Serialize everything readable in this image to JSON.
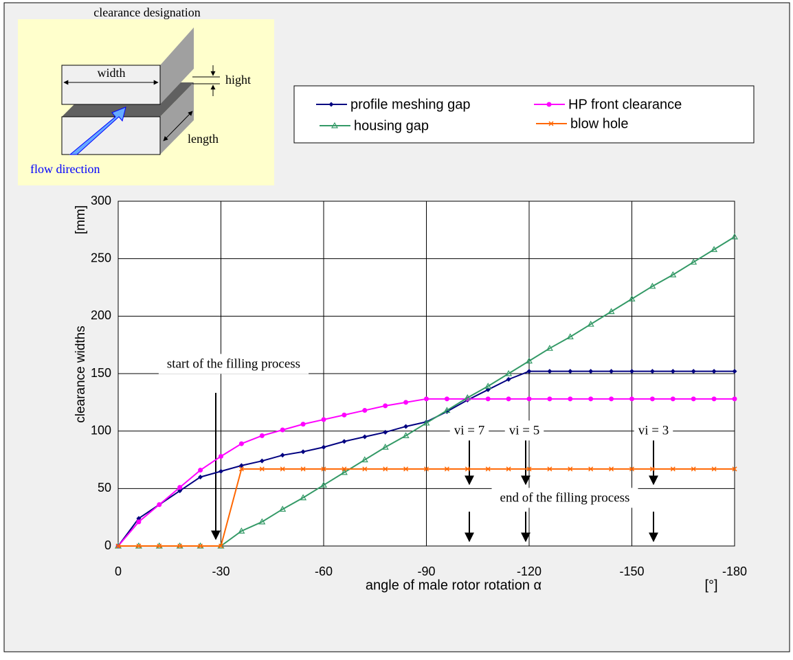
{
  "diagram": {
    "title": "clearance designation",
    "width": "width",
    "hight": "hight",
    "length": "length",
    "flow": "flow direction"
  },
  "chart_data": {
    "type": "line",
    "y_label": "clearance widths",
    "y_unit": "[mm]",
    "x_label": "angle of male rotor rotation  α",
    "x_unit": "[°]",
    "x": [
      0,
      -6,
      -12,
      -18,
      -24,
      -30,
      -36,
      -42,
      -48,
      -54,
      -60,
      -66,
      -72,
      -78,
      -84,
      -90,
      -96,
      -102,
      -108,
      -114,
      -120,
      -126,
      -132,
      -138,
      -144,
      -150,
      -156,
      -162,
      -168,
      -174,
      -180
    ],
    "series": [
      {
        "name": "profile meshing gap",
        "color": "#000080",
        "marker": "diamond",
        "values": [
          0,
          24,
          36,
          48,
          60,
          65,
          70,
          74,
          79,
          82,
          86,
          91,
          95,
          99,
          104,
          108,
          117,
          127,
          136,
          145,
          152,
          152,
          152,
          152,
          152,
          152,
          152,
          152,
          152,
          152,
          152
        ]
      },
      {
        "name": "HP front clearance",
        "color": "#ff00ff",
        "marker": "circle",
        "values": [
          0,
          21,
          36,
          51,
          66,
          78,
          89,
          96,
          101,
          106,
          110,
          114,
          118,
          122,
          125,
          128,
          128,
          128,
          128,
          128,
          128,
          128,
          128,
          128,
          128,
          128,
          128,
          128,
          128,
          128,
          128
        ]
      },
      {
        "name": "housing gap",
        "color": "#339966",
        "marker": "triangle",
        "values": [
          0,
          0,
          0,
          0,
          0,
          0,
          13,
          21,
          32,
          42,
          53,
          64,
          75,
          86,
          96,
          107,
          118,
          129,
          139,
          150,
          161,
          172,
          182,
          193,
          204,
          215,
          226,
          236,
          247,
          258,
          269
        ]
      },
      {
        "name": "blow hole",
        "color": "#ff6600",
        "marker": "x",
        "values": [
          0,
          0,
          0,
          0,
          0,
          0,
          67,
          67,
          67,
          67,
          67,
          67,
          67,
          67,
          67,
          67,
          67,
          67,
          67,
          67,
          67,
          67,
          67,
          67,
          67,
          67,
          67,
          67,
          67,
          67,
          67
        ]
      }
    ],
    "xlim": [
      0,
      -180
    ],
    "xticks": [
      0,
      -30,
      -60,
      -90,
      -120,
      -150,
      -180
    ],
    "ylim": [
      0,
      300
    ],
    "yticks": [
      0,
      50,
      100,
      150,
      200,
      250,
      300
    ],
    "grid": true,
    "annotations": [
      "start of the filling process",
      "vi = 7",
      "vi = 5",
      "vi = 3",
      "end of the filling process"
    ]
  }
}
